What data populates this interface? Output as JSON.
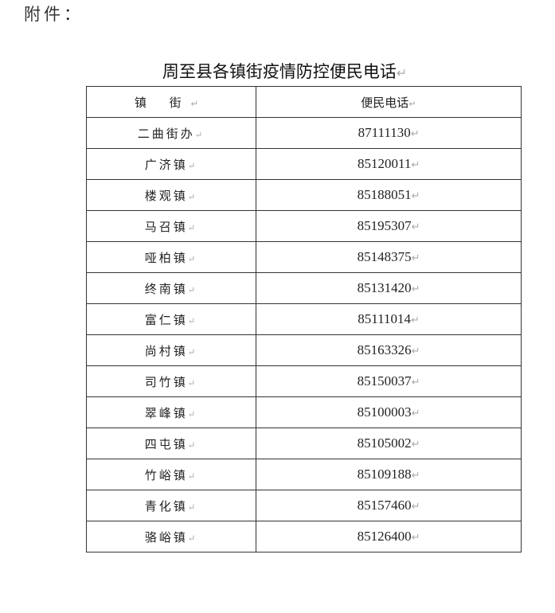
{
  "attachment_label": "附件：",
  "title": "周至县各镇街疫情防控便民电话",
  "table": {
    "headers": [
      "镇 街",
      "便民电话"
    ],
    "rows": [
      {
        "town": "二曲街办",
        "phone": "87111130"
      },
      {
        "town": "广济镇",
        "phone": "85120011"
      },
      {
        "town": "楼观镇",
        "phone": "85188051"
      },
      {
        "town": "马召镇",
        "phone": "85195307"
      },
      {
        "town": "哑柏镇",
        "phone": "85148375"
      },
      {
        "town": "终南镇",
        "phone": "85131420"
      },
      {
        "town": "富仁镇",
        "phone": "85111014"
      },
      {
        "town": "尚村镇",
        "phone": "85163326"
      },
      {
        "town": "司竹镇",
        "phone": "85150037"
      },
      {
        "town": "翠峰镇",
        "phone": "85100003"
      },
      {
        "town": "四屯镇",
        "phone": "85105002"
      },
      {
        "town": "竹峪镇",
        "phone": "85109188"
      },
      {
        "town": "青化镇",
        "phone": "85157460"
      },
      {
        "town": "骆峪镇",
        "phone": "85126400"
      }
    ]
  }
}
